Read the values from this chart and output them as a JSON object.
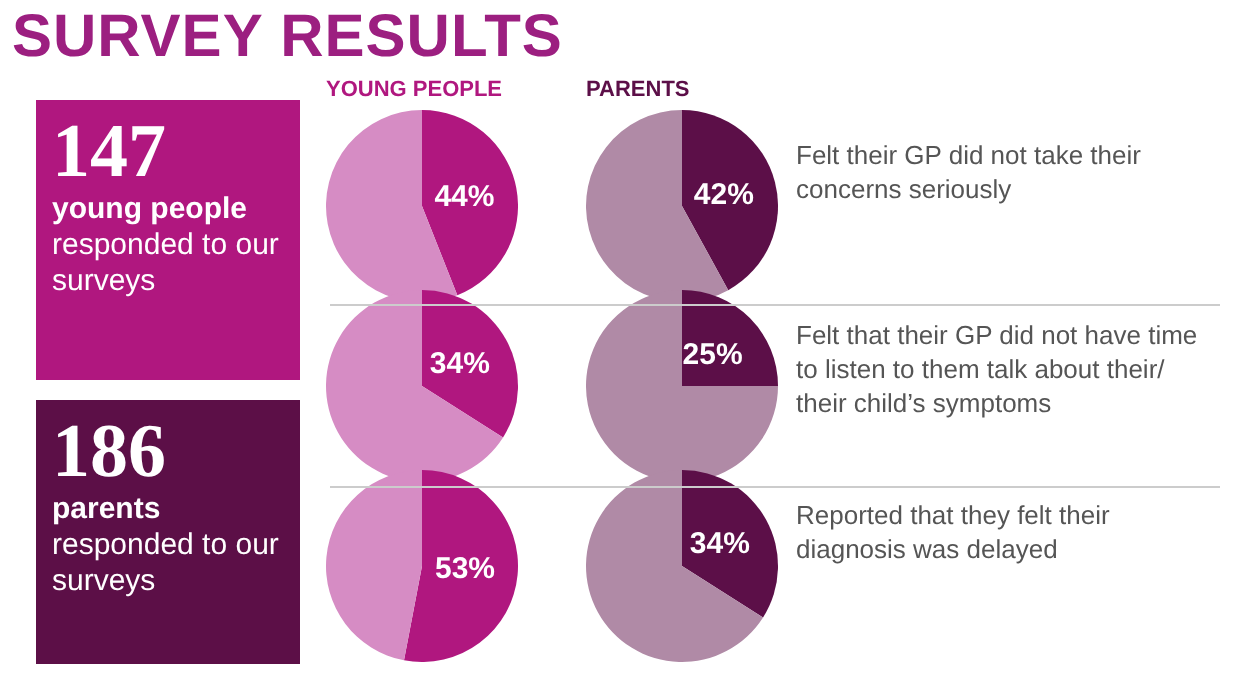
{
  "chart_data": [
    {
      "type": "other",
      "title": "SURVEY RESULTS",
      "annotations": [
        "147",
        "young people",
        "responded to our surveys"
      ]
    },
    {
      "type": "other",
      "annotations": [
        "186",
        "parents",
        "responded to our surveys"
      ]
    },
    {
      "type": "pie",
      "title": "YOUNG PEOPLE",
      "categories": [
        null,
        null
      ],
      "values": [
        44,
        56
      ],
      "colors": [
        "#b0177f",
        "#d68cc4"
      ],
      "value_labels": [
        "44%",
        null
      ]
    },
    {
      "type": "pie",
      "title": "PARENTS",
      "categories": [
        null,
        null
      ],
      "values": [
        42,
        58
      ],
      "colors": [
        "#5c0f48",
        "#b08aa6"
      ],
      "value_labels": [
        "42%",
        null
      ],
      "annotations": [
        "Felt their GP did not take their concerns seriously"
      ]
    },
    {
      "type": "pie",
      "categories": [
        null,
        null
      ],
      "values": [
        34,
        66
      ],
      "colors": [
        "#b0177f",
        "#d68cc4"
      ],
      "value_labels": [
        "34%",
        null
      ]
    },
    {
      "type": "pie",
      "categories": [
        null,
        null
      ],
      "values": [
        25,
        75
      ],
      "colors": [
        "#5c0f48",
        "#b08aa6"
      ],
      "value_labels": [
        "25%",
        null
      ],
      "annotations": [
        "Felt that their GP did not have time to listen to them talk about their/ their child’s symptoms"
      ]
    },
    {
      "type": "pie",
      "categories": [
        null,
        null
      ],
      "values": [
        53,
        47
      ],
      "colors": [
        "#b0177f",
        "#d68cc4"
      ],
      "value_labels": [
        "53%",
        null
      ]
    },
    {
      "type": "pie",
      "categories": [
        null,
        null
      ],
      "values": [
        34,
        66
      ],
      "colors": [
        "#5c0f48",
        "#b08aa6"
      ],
      "value_labels": [
        "34%",
        null
      ],
      "annotations": [
        "Reported that they felt their diagnosis was delayed"
      ]
    }
  ]
}
